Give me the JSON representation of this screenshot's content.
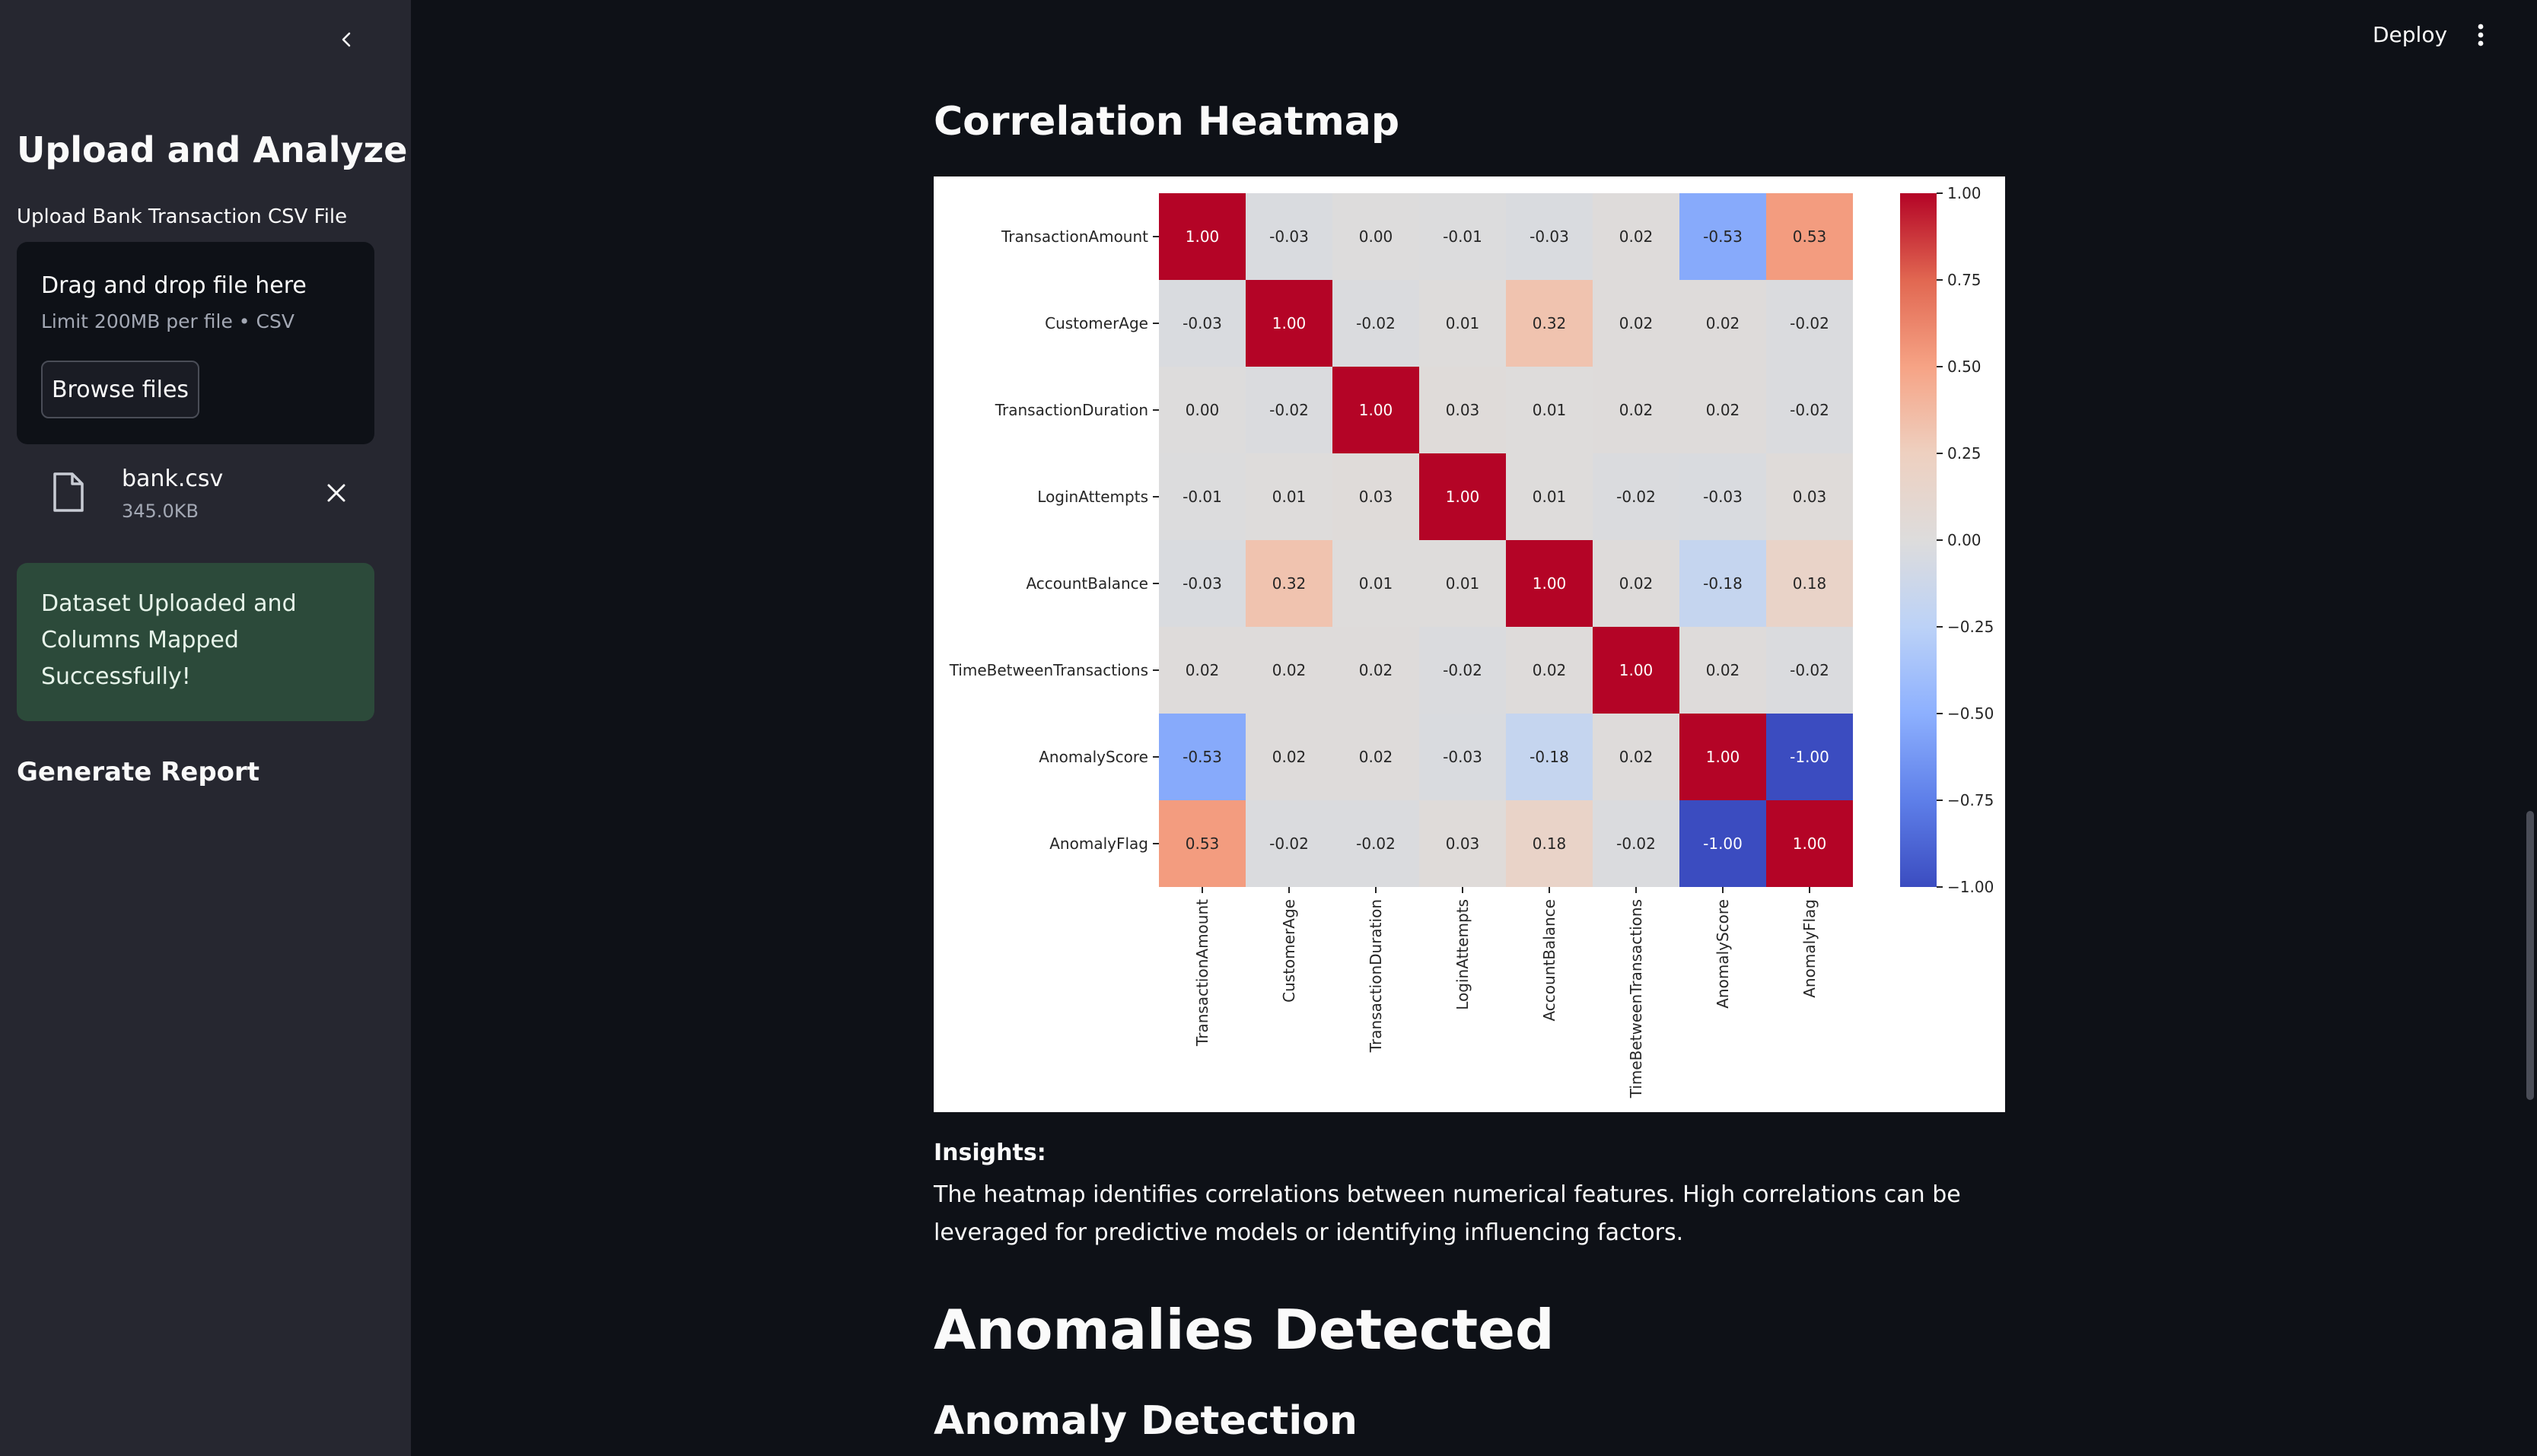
{
  "sidebar": {
    "title": "Upload and Analyze",
    "upload_label": "Upload Bank Transaction CSV File",
    "dropzone": {
      "main_text": "Drag and drop file here",
      "sub_text": "Limit 200MB per file • CSV",
      "browse_label": "Browse files"
    },
    "file": {
      "name": "bank.csv",
      "size": "345.0KB"
    },
    "success_message": "Dataset Uploaded and Columns Mapped Successfully!",
    "report_title": "Generate Report"
  },
  "header": {
    "deploy_label": "Deploy"
  },
  "main": {
    "heatmap_title": "Correlation Heatmap",
    "insights_label": "Insights:",
    "insights_text": "The heatmap identifies correlations between numerical features. High correlations can be leveraged for predictive models or identifying influencing factors.",
    "anomalies_title": "Anomalies Detected",
    "anomaly_detection_title": "Anomaly Detection"
  },
  "icons": {
    "collapse": "chevron-left-icon",
    "file": "file-icon",
    "remove": "close-icon",
    "menu": "vertical-dots-icon"
  },
  "chart_data": {
    "type": "heatmap",
    "labels": [
      "TransactionAmount",
      "CustomerAge",
      "TransactionDuration",
      "LoginAttempts",
      "AccountBalance",
      "TimeBetweenTransactions",
      "AnomalyScore",
      "AnomalyFlag"
    ],
    "matrix": [
      [
        1.0,
        -0.03,
        0.0,
        -0.01,
        -0.03,
        0.02,
        -0.53,
        0.53
      ],
      [
        -0.03,
        1.0,
        -0.02,
        0.01,
        0.32,
        0.02,
        0.02,
        -0.02
      ],
      [
        0.0,
        -0.02,
        1.0,
        0.03,
        0.01,
        0.02,
        0.02,
        -0.02
      ],
      [
        -0.01,
        0.01,
        0.03,
        1.0,
        0.01,
        -0.02,
        -0.03,
        0.03
      ],
      [
        -0.03,
        0.32,
        0.01,
        0.01,
        1.0,
        0.02,
        -0.18,
        0.18
      ],
      [
        0.02,
        0.02,
        0.02,
        -0.02,
        0.02,
        1.0,
        0.02,
        -0.02
      ],
      [
        -0.53,
        0.02,
        0.02,
        -0.03,
        -0.18,
        0.02,
        1.0,
        -1.0
      ],
      [
        0.53,
        -0.02,
        -0.02,
        0.03,
        0.18,
        -0.02,
        -1.0,
        1.0
      ]
    ],
    "value_format": "0.00",
    "colormap": "coolwarm",
    "vmin": -1.0,
    "vmax": 1.0,
    "colorbar_ticks": [
      "1.00",
      "0.75",
      "0.50",
      "0.25",
      "0.00",
      "−0.25",
      "−0.50",
      "−0.75",
      "−1.00"
    ],
    "colorbar_tick_values": [
      1.0,
      0.75,
      0.5,
      0.25,
      0.0,
      -0.25,
      -0.5,
      -0.75,
      -1.0
    ]
  }
}
